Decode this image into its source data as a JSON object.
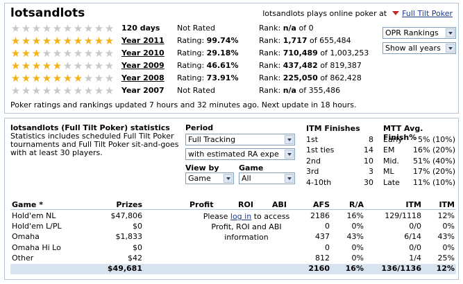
{
  "header": {
    "player": "lotsandlots",
    "plays_text": "lotsandlots plays online poker at",
    "site_link": "Full Tilt Poker"
  },
  "ratings": [
    {
      "stars": 0,
      "period": "120 days",
      "underline": false,
      "rating_label": "Not Rated",
      "rating_value": "",
      "rank_label": "Rank:",
      "rank_value": "n/a",
      "rank_total": "of 0"
    },
    {
      "stars": 10,
      "period": "Year 2011",
      "underline": true,
      "rating_label": "Rating:",
      "rating_value": "99.74%",
      "rank_label": "Rank:",
      "rank_value": "1,717",
      "rank_total": "of 655,484"
    },
    {
      "stars": 3,
      "period": "Year 2010",
      "underline": true,
      "rating_label": "Rating:",
      "rating_value": "29.18%",
      "rank_label": "Rank:",
      "rank_value": "710,489",
      "rank_total": "of 1,003,253"
    },
    {
      "stars": 5,
      "period": "Year 2009",
      "underline": true,
      "rating_label": "Rating:",
      "rating_value": "46.61%",
      "rank_label": "Rank:",
      "rank_value": "437,482",
      "rank_total": "of 819,387"
    },
    {
      "stars": 7,
      "period": "Year 2008",
      "underline": true,
      "rating_label": "Rating:",
      "rating_value": "73.91%",
      "rank_label": "Rank:",
      "rank_value": "225,050",
      "rank_total": "of 862,428"
    },
    {
      "stars": 0,
      "period": "Year 2007",
      "underline": false,
      "rating_label": "Not Rated",
      "rating_value": "",
      "rank_label": "Rank:",
      "rank_value": "n/a",
      "rank_total": "of 355,486"
    }
  ],
  "update_note": "Poker ratings and rankings updated 7 hours and 32 minutes ago. Next update in 18 hours.",
  "selects": {
    "opr": "OPR Rankings",
    "years": "Show all years"
  },
  "stats": {
    "title": "lotsandlots (Full Tilt Poker) statistics",
    "description": "Statistics includes scheduled Full Tilt Poker tournaments and Full Tilt Poker sit-and-goes with at least 30 players.",
    "period_label": "Period",
    "period_value": "Full Tracking",
    "estimate_value": "with estimated RA expe",
    "viewby_label": "View by",
    "viewby_value": "Game",
    "game_label": "Game",
    "game_value": "All"
  },
  "itm_finishes": {
    "title": "ITM Finishes",
    "rows": [
      {
        "label": "1st",
        "value": "8"
      },
      {
        "label": "1st ties",
        "value": "14"
      },
      {
        "label": "2nd",
        "value": "10"
      },
      {
        "label": "3rd",
        "value": "3"
      },
      {
        "label": "4-10th",
        "value": "30"
      }
    ]
  },
  "mtt_finish": {
    "title": "MTT Avg. Finish%",
    "rows": [
      {
        "label": "Early",
        "value": "5% (10%)"
      },
      {
        "label": "EM",
        "value": "16% (20%)"
      },
      {
        "label": "Mid.",
        "value": "51% (40%)"
      },
      {
        "label": "ML",
        "value": "17% (20%)"
      },
      {
        "label": "Late",
        "value": "11% (10%)"
      }
    ]
  },
  "table": {
    "headers": {
      "game": "Game *",
      "prizes": "Prizes",
      "profit": "Profit",
      "roi": "ROI",
      "abi": "ABI",
      "afs": "AFS",
      "ra": "R/A",
      "itm": "ITM",
      "itmp": "ITM"
    },
    "rows": [
      {
        "game": "Hold'em NL",
        "prizes": "$47,806",
        "afs": "2186",
        "ra": "16%",
        "itm": "129/1118",
        "itmp": "12%"
      },
      {
        "game": "Hold'em L/PL",
        "prizes": "$0",
        "afs": "0",
        "ra": "0%",
        "itm": "0/0",
        "itmp": "0%"
      },
      {
        "game": "Omaha",
        "prizes": "$1,833",
        "afs": "437",
        "ra": "43%",
        "itm": "6/14",
        "itmp": "43%"
      },
      {
        "game": "Omaha Hi Lo",
        "prizes": "$0",
        "afs": "0",
        "ra": "0%",
        "itm": "0/0",
        "itmp": "0%"
      },
      {
        "game": "Other",
        "prizes": "$42",
        "afs": "812",
        "ra": "0%",
        "itm": "1/4",
        "itmp": "25%"
      }
    ],
    "login_note": {
      "before": "Please",
      "link": "log in",
      "after": "to access Profit, ROI and ABI information"
    },
    "total": {
      "prizes": "$49,681",
      "afs": "2160",
      "ra": "16%",
      "itm": "136/1136",
      "itmp": "12%"
    }
  }
}
